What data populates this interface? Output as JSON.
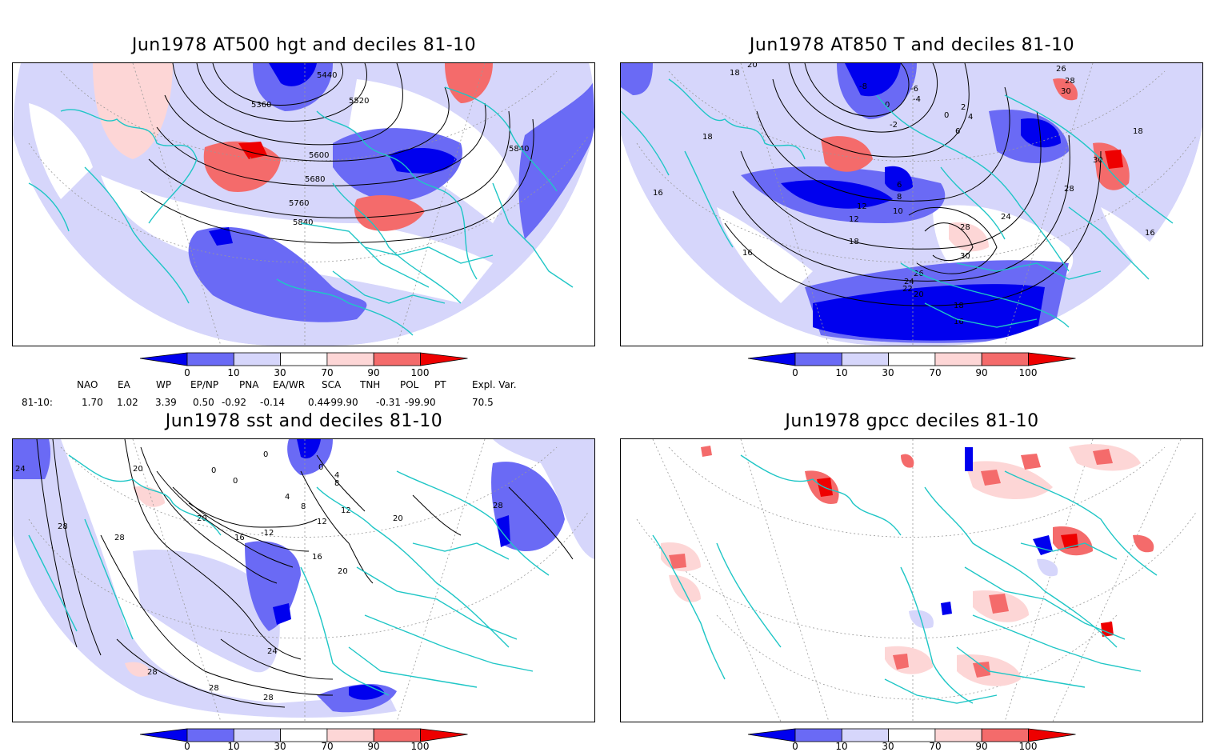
{
  "panels": {
    "tl": {
      "title": "Jun1978 AT500 hgt and deciles 81-10",
      "contour_labels": [
        "5440",
        "5360",
        "5520",
        "5600",
        "5680",
        "5760",
        "5840",
        "5840"
      ]
    },
    "tr": {
      "title": "Jun1978 AT850 T and deciles 81-10",
      "contour_labels": [
        "20",
        "18",
        "-8",
        "-6",
        "-4",
        "0",
        "2",
        "4",
        "0",
        "-2",
        "6",
        "26",
        "28",
        "30",
        "18",
        "18",
        "30",
        "16",
        "6",
        "8",
        "10",
        "12",
        "12",
        "18",
        "24",
        "28",
        "28",
        "16",
        "30",
        "26",
        "24",
        "22",
        "20",
        "18",
        "16",
        "16"
      ]
    },
    "bl": {
      "title": "Jun1978 sst and deciles 81-10",
      "contour_labels": [
        "24",
        "28",
        "20",
        "0",
        "0",
        "0",
        "0",
        "4",
        "8",
        "12",
        "4",
        "8",
        "16",
        "12",
        "-12",
        "20",
        "20",
        "28",
        "28",
        "16",
        "20",
        "24",
        "28",
        "28",
        "28"
      ]
    },
    "br": {
      "title": "Jun1978 gpcc deciles 81-10",
      "contour_labels": []
    }
  },
  "colorbar": {
    "ticks": [
      "0",
      "10",
      "30",
      "70",
      "90",
      "100"
    ],
    "colors": [
      "#0000ee",
      "#6a6af5",
      "#d6d6fb",
      "#ffffff",
      "#fdd6d6",
      "#f46b6b",
      "#ee0000"
    ]
  },
  "indices": {
    "row_label": "81-10:",
    "headers": [
      "NAO",
      "EA",
      "WP",
      "EP/NP",
      "PNA",
      "EA/WR",
      "SCA",
      "TNH",
      "POL",
      "PT",
      "Expl. Var."
    ],
    "values": [
      "1.70",
      "1.02",
      "3.39",
      "0.50",
      "-0.92",
      "-0.14",
      "0.44",
      "-99.90",
      "-0.31",
      "-99.90",
      "70.5"
    ]
  },
  "map_colors": {
    "coast": "#1fc6c6",
    "dark_blue": "#0000ee",
    "mid_blue": "#6a6af5",
    "light_blue": "#d6d6fb",
    "light_red": "#fdd6d6",
    "mid_red": "#f46b6b",
    "dark_red": "#ee0000"
  }
}
